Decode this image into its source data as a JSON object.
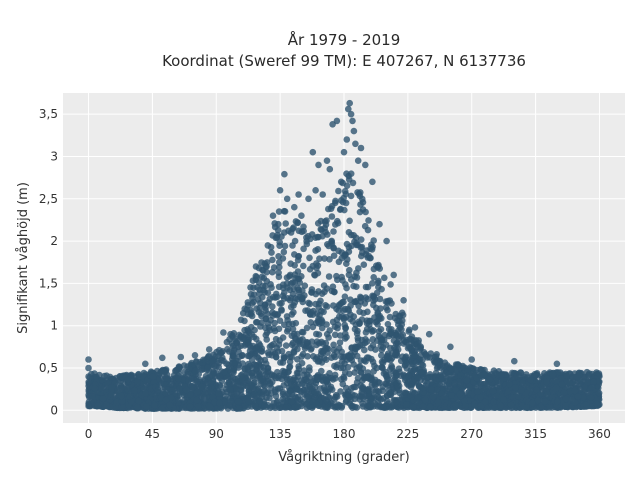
{
  "chart_data": {
    "type": "scatter",
    "title": "År 1979 - 2019",
    "subtitle": "Koordinat (Sweref 99 TM): E 407267, N 6137736",
    "xlabel": "Vågriktning (grader)",
    "ylabel": "Signifikant våghöjd (m)",
    "xlim": [
      -18,
      378
    ],
    "ylim": [
      -0.15,
      3.75
    ],
    "xticks": [
      0,
      45,
      90,
      135,
      180,
      225,
      270,
      315,
      360
    ],
    "xtick_labels": [
      "0",
      "45",
      "90",
      "135",
      "180",
      "225",
      "270",
      "315",
      "360"
    ],
    "yticks": [
      0,
      0.5,
      1,
      1.5,
      2,
      2.5,
      3,
      3.5
    ],
    "ytick_labels": [
      "0",
      "0,5",
      "1",
      "1,5",
      "2",
      "2,5",
      "3",
      "3,5"
    ],
    "grid": true,
    "colors": {
      "marker": "#2f5570",
      "plot_bg": "#ececec",
      "grid": "#ffffff"
    },
    "envelope": {
      "x": [
        0,
        20,
        40,
        60,
        80,
        95,
        105,
        115,
        125,
        135,
        145,
        155,
        165,
        175,
        185,
        195,
        205,
        215,
        225,
        235,
        250,
        270,
        300,
        330,
        360
      ],
      "ymin": [
        0.05,
        0.03,
        0.02,
        0.02,
        0.02,
        0.02,
        0.02,
        0.03,
        0.03,
        0.03,
        0.03,
        0.03,
        0.03,
        0.03,
        0.03,
        0.03,
        0.03,
        0.03,
        0.03,
        0.03,
        0.03,
        0.03,
        0.03,
        0.03,
        0.05
      ],
      "ymax": [
        0.45,
        0.4,
        0.45,
        0.5,
        0.6,
        0.75,
        1.0,
        1.5,
        1.9,
        2.4,
        2.3,
        2.2,
        2.3,
        2.6,
        2.9,
        2.4,
        1.9,
        1.4,
        1.0,
        0.8,
        0.6,
        0.5,
        0.45,
        0.45,
        0.45
      ]
    },
    "outliers": {
      "x": [
        0,
        0,
        40,
        52,
        65,
        75,
        85,
        95,
        100,
        110,
        118,
        130,
        135,
        138,
        140,
        145,
        148,
        150,
        155,
        158,
        160,
        162,
        165,
        168,
        170,
        172,
        175,
        178,
        180,
        182,
        183,
        184,
        185,
        186,
        187,
        188,
        190,
        192,
        195,
        200,
        205,
        210,
        215,
        222,
        230,
        240,
        255,
        270,
        300,
        330
      ],
      "y": [
        0.6,
        0.5,
        0.55,
        0.62,
        0.63,
        0.65,
        0.72,
        0.92,
        0.9,
        1.2,
        1.7,
        2.3,
        2.6,
        2.79,
        2.5,
        2.4,
        2.55,
        2.3,
        2.5,
        3.05,
        2.6,
        2.9,
        2.55,
        2.95,
        2.85,
        3.38,
        3.42,
        2.7,
        3.05,
        3.2,
        3.56,
        3.63,
        3.5,
        3.42,
        3.3,
        3.15,
        2.95,
        3.1,
        2.9,
        2.7,
        2.2,
        2.0,
        1.6,
        1.3,
        0.98,
        0.9,
        0.75,
        0.6,
        0.58,
        0.55
      ]
    }
  }
}
